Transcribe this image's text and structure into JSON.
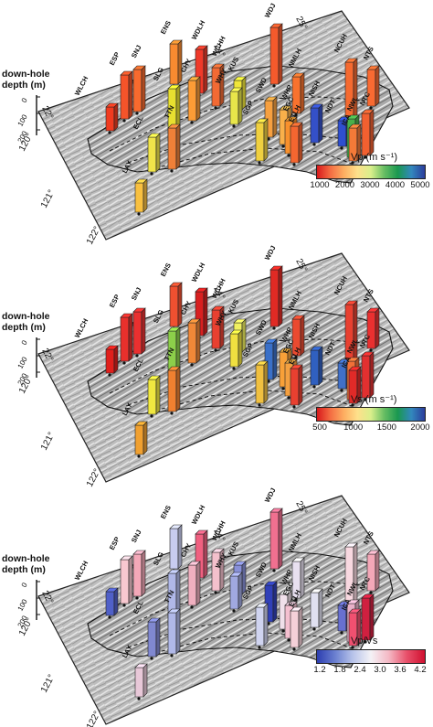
{
  "axis_title": "down-hole depth (m)",
  "longitude_labels": [
    "120°",
    "121°",
    "122°"
  ],
  "latitude_labels": [
    "22°",
    "23°",
    "24°",
    "25°"
  ],
  "depth_ticks": [
    "0",
    "100",
    "200"
  ],
  "stations": [
    {
      "code": "WLCH"
    },
    {
      "code": "ESP"
    },
    {
      "code": "SNJ"
    },
    {
      "code": "ENS"
    },
    {
      "code": "SLG"
    },
    {
      "code": "CHY"
    },
    {
      "code": "WDLH"
    },
    {
      "code": "WCHH"
    },
    {
      "code": "WDJ"
    },
    {
      "code": "NMLH"
    },
    {
      "code": "NCUH"
    },
    {
      "code": "NTS"
    },
    {
      "code": "KUS"
    },
    {
      "code": "WHY"
    },
    {
      "code": "SWD"
    },
    {
      "code": "WHP"
    },
    {
      "code": "NISH"
    },
    {
      "code": "NDT"
    },
    {
      "code": "NWL"
    },
    {
      "code": "ICA"
    },
    {
      "code": "NTC"
    },
    {
      "code": "SGP"
    },
    {
      "code": "EGC"
    },
    {
      "code": "ETLH"
    },
    {
      "code": "ECL"
    },
    {
      "code": "TTN"
    },
    {
      "code": "LAY"
    }
  ],
  "panels": [
    {
      "id": "vp",
      "colorbar": {
        "title": "Vp (m s⁻¹)",
        "ticks": [
          "1000",
          "2000",
          "3000",
          "4000",
          "5000"
        ],
        "colors": [
          "#d7191c",
          "#f46d43",
          "#fdae61",
          "#fee08b",
          "#d9ef8b",
          "#66bd63",
          "#1a9850",
          "#3288bd",
          "#2b3d9c"
        ]
      },
      "station_colors": [
        "#f03b20",
        "#f5542a",
        "#f86a2e",
        "#f98a30",
        "#e8e030",
        "#fc9c36",
        "#ef3a2a",
        "#f26a34",
        "#f45a2c",
        "#f8722e",
        "#f56a30",
        "#f96a32",
        "#f0e63a",
        "#e8e64a",
        "#f6a040",
        "#f9b04a",
        "#3450c8",
        "#2f4fcf",
        "#4ab04a",
        "#f47a38",
        "#f26030",
        "#f0d040",
        "#f8902c",
        "#f46630",
        "#f0e44a",
        "#f08038",
        "#f8c040"
      ]
    },
    {
      "id": "vs",
      "colorbar": {
        "title": "Vs (m s⁻¹)",
        "ticks": [
          "500",
          "1000",
          "1500",
          "2000"
        ],
        "colors": [
          "#d7191c",
          "#f46d43",
          "#fdae61",
          "#fee08b",
          "#d9ef8b",
          "#66bd63",
          "#1a9850",
          "#3288bd",
          "#2b3d9c"
        ]
      },
      "station_colors": [
        "#e0201c",
        "#e8302c",
        "#ea3030",
        "#f05030",
        "#8ccf4a",
        "#f08838",
        "#d82020",
        "#e84030",
        "#e02a24",
        "#ea4a30",
        "#e84030",
        "#ea3030",
        "#f0f060",
        "#f0e040",
        "#3a70c8",
        "#f8a038",
        "#3060c0",
        "#4070c8",
        "#f07038",
        "#e02a28",
        "#e23030",
        "#f0c040",
        "#f4a040",
        "#e84030",
        "#f0e840",
        "#f08030",
        "#f0a030"
      ]
    },
    {
      "id": "vpvs",
      "colorbar": {
        "title": "Vp/Vs",
        "ticks": [
          "1.2",
          "1.8",
          "2.4",
          "3.0",
          "3.6",
          "4.2"
        ],
        "colors": [
          "#2c3eb0",
          "#6a7fd0",
          "#b8c4ea",
          "#f4f2f6",
          "#f4b8c4",
          "#e8506a",
          "#d01030"
        ]
      },
      "station_colors": [
        "#5060c8",
        "#f8c8d0",
        "#f4a8b8",
        "#c8ccf0",
        "#b0b8e8",
        "#f0b0c0",
        "#f06080",
        "#f4c0cc",
        "#f07090",
        "#e8e0f0",
        "#f8d8e0",
        "#f4a8b8",
        "#8890d8",
        "#a0a8e0",
        "#3040b8",
        "#f0e0ea",
        "#e0e0f0",
        "#6870d0",
        "#e8b0c8",
        "#f05070",
        "#d02040",
        "#d0d4f0",
        "#f4c0d0",
        "#f4d0d8",
        "#8088d0",
        "#b0b8e8",
        "#e8c8d8"
      ]
    }
  ]
}
